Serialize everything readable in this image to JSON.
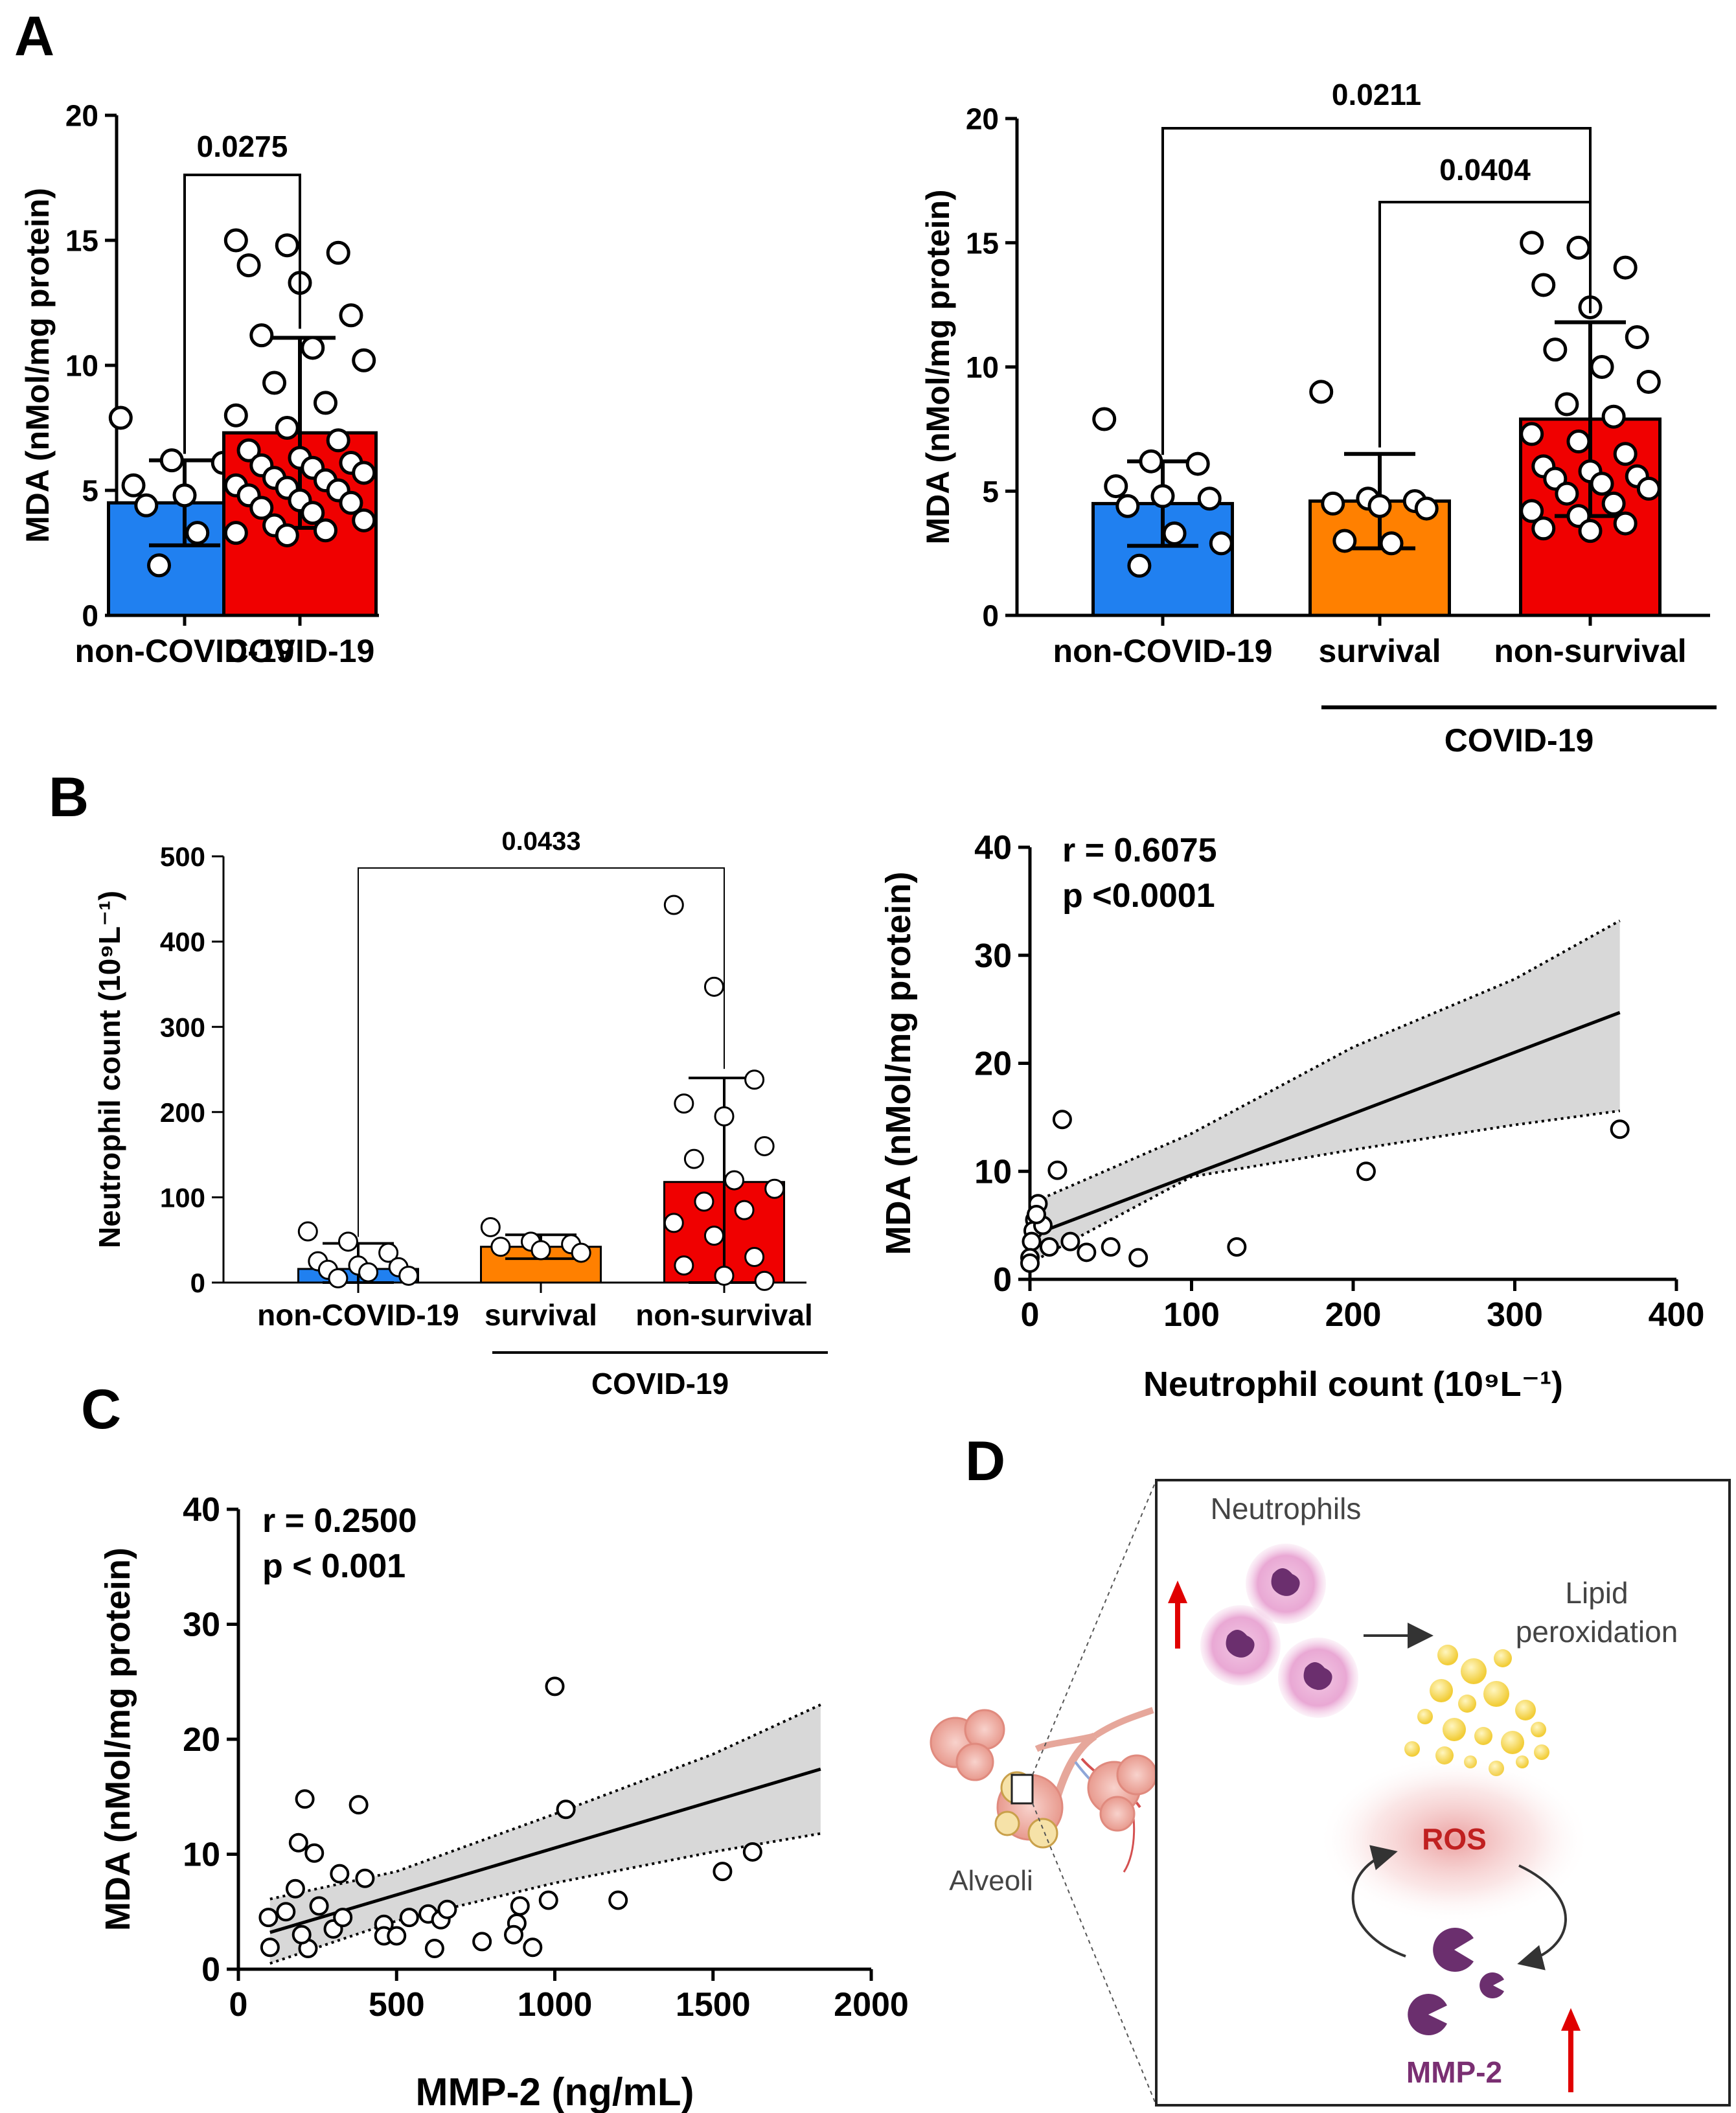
{
  "panel_labels": {
    "A": "A",
    "B": "B",
    "C": "C",
    "D": "D"
  },
  "chart_data": [
    {
      "id": "A1",
      "type": "bar",
      "ylabel": "MDA (nMol/mg protein)",
      "ylim": [
        0,
        20
      ],
      "yticks": [
        "0",
        "5",
        "10",
        "15",
        "20"
      ],
      "categories": [
        "non-COVID-19",
        "COVID-19"
      ],
      "colors": [
        "#2080f0",
        "#f00000"
      ],
      "values": [
        4.5,
        7.3
      ],
      "sd": [
        1.7,
        3.8
      ],
      "points": [
        [
          7.9,
          6.2,
          6.1,
          5.2,
          4.8,
          4.7,
          4.4,
          3.3,
          2.9,
          2.0
        ],
        [
          15.0,
          14.8,
          14.5,
          14.0,
          13.3,
          12.0,
          11.2,
          10.7,
          10.2,
          9.3,
          8.5,
          8.0,
          7.5,
          7.0,
          6.6,
          6.3,
          6.1,
          6.0,
          5.9,
          5.7,
          5.5,
          5.4,
          5.2,
          5.1,
          5.0,
          4.8,
          4.6,
          4.5,
          4.3,
          4.1,
          3.8,
          3.6,
          3.4,
          3.3,
          3.2
        ]
      ],
      "comparisons": [
        {
          "from": 0,
          "to": 1,
          "label": "0.0275"
        }
      ]
    },
    {
      "id": "A2",
      "type": "bar",
      "ylabel": "MDA (nMol/mg protein)",
      "ylim": [
        0,
        20
      ],
      "yticks": [
        "0",
        "5",
        "10",
        "15",
        "20"
      ],
      "categories": [
        "non-COVID-19",
        "survival",
        "non-survival"
      ],
      "colors": [
        "#2080f0",
        "#ff8000",
        "#f00000"
      ],
      "values": [
        4.5,
        4.6,
        7.9
      ],
      "sd": [
        1.7,
        1.9,
        3.9
      ],
      "points": [
        [
          7.9,
          6.2,
          6.1,
          5.2,
          4.8,
          4.7,
          4.4,
          3.3,
          2.9,
          2.0
        ],
        [
          9.0,
          4.7,
          4.6,
          4.5,
          4.4,
          4.3,
          3.0,
          2.9
        ],
        [
          15.0,
          14.8,
          14.0,
          13.3,
          12.4,
          11.2,
          10.7,
          10.0,
          9.4,
          8.5,
          8.0,
          7.3,
          7.0,
          6.5,
          6.0,
          5.8,
          5.6,
          5.5,
          5.3,
          5.1,
          4.9,
          4.5,
          4.2,
          4.0,
          3.7,
          3.5,
          3.4
        ]
      ],
      "comparisons": [
        {
          "from": 0,
          "to": 2,
          "label": "0.0211"
        },
        {
          "from": 1,
          "to": 2,
          "label": "0.0404"
        }
      ],
      "group_label": "COVID-19"
    },
    {
      "id": "B1",
      "type": "bar",
      "ylabel": "Neutrophil count (10⁹L⁻¹)",
      "ylim": [
        0,
        500
      ],
      "yticks": [
        "0",
        "100",
        "200",
        "300",
        "400",
        "500"
      ],
      "categories": [
        "non-COVID-19",
        "survival",
        "non-survival"
      ],
      "colors": [
        "#2080f0",
        "#ff8000",
        "#f00000"
      ],
      "values": [
        16,
        42,
        118
      ],
      "sd": [
        30,
        14,
        122
      ],
      "points": [
        [
          60,
          48,
          35,
          25,
          20,
          18,
          15,
          12,
          8,
          5
        ],
        [
          65,
          48,
          45,
          42,
          38,
          35
        ],
        [
          443,
          347,
          238,
          210,
          195,
          160,
          145,
          120,
          110,
          95,
          85,
          70,
          55,
          30,
          20,
          8,
          2
        ]
      ],
      "comparisons": [
        {
          "from": 0,
          "to": 2,
          "label": "0.0433"
        }
      ],
      "group_label": "COVID-19"
    },
    {
      "id": "B2",
      "type": "scatter",
      "xlabel": "Neutrophil count (10⁹L⁻¹)",
      "ylabel": "MDA (nMol/mg protein)",
      "xlim": [
        0,
        400
      ],
      "ylim": [
        0,
        40
      ],
      "xticks": [
        "0",
        "100",
        "200",
        "300",
        "400"
      ],
      "yticks": [
        "0",
        "10",
        "20",
        "30",
        "40"
      ],
      "stats": [
        "r = 0.6075",
        "p <0.0001"
      ],
      "points": [
        [
          20,
          14.8
        ],
        [
          17,
          10.1
        ],
        [
          208,
          10.0
        ],
        [
          365,
          13.9
        ],
        [
          128,
          3.0
        ],
        [
          50,
          3.0
        ],
        [
          67,
          2.0
        ],
        [
          35,
          2.5
        ],
        [
          5,
          7.0
        ],
        [
          3,
          5.5
        ],
        [
          2,
          4.5
        ],
        [
          1,
          3.5
        ],
        [
          0,
          2.0
        ],
        [
          0,
          1.5
        ],
        [
          8,
          5.0
        ],
        [
          12,
          3.0
        ],
        [
          25,
          3.5
        ],
        [
          4,
          6.0
        ]
      ],
      "fit": {
        "x": [
          0,
          365
        ],
        "y": [
          4.0,
          24.7
        ]
      },
      "ci_upper": [
        [
          0,
          7.0
        ],
        [
          100,
          13.5
        ],
        [
          200,
          21.5
        ],
        [
          300,
          27.8
        ],
        [
          365,
          33.2
        ]
      ],
      "ci_lower": [
        [
          0,
          1.5
        ],
        [
          100,
          9.5
        ],
        [
          200,
          12.0
        ],
        [
          300,
          14.3
        ],
        [
          365,
          15.6
        ]
      ]
    },
    {
      "id": "C",
      "type": "scatter",
      "xlabel": "MMP-2 (ng/mL)",
      "ylabel": "MDA (nMol/mg protein)",
      "xlim": [
        0,
        2000
      ],
      "ylim": [
        0,
        40
      ],
      "xticks": [
        "0",
        "500",
        "1000",
        "1500",
        "2000"
      ],
      "yticks": [
        "0",
        "10",
        "20",
        "30",
        "40"
      ],
      "stats": [
        "r = 0.2500",
        "p < 0.001"
      ],
      "points": [
        [
          1000,
          24.6
        ],
        [
          210,
          14.8
        ],
        [
          380,
          14.3
        ],
        [
          1035,
          13.9
        ],
        [
          190,
          11.0
        ],
        [
          240,
          10.1
        ],
        [
          1625,
          10.2
        ],
        [
          1530,
          8.5
        ],
        [
          320,
          8.3
        ],
        [
          400,
          7.9
        ],
        [
          180,
          7.0
        ],
        [
          255,
          5.5
        ],
        [
          890,
          5.5
        ],
        [
          980,
          6.0
        ],
        [
          1200,
          6.0
        ],
        [
          95,
          4.5
        ],
        [
          300,
          3.5
        ],
        [
          330,
          4.5
        ],
        [
          460,
          3.9
        ],
        [
          540,
          4.5
        ],
        [
          600,
          4.8
        ],
        [
          640,
          4.3
        ],
        [
          660,
          5.2
        ],
        [
          880,
          4.0
        ],
        [
          870,
          3.0
        ],
        [
          460,
          2.9
        ],
        [
          500,
          2.9
        ],
        [
          770,
          2.4
        ],
        [
          100,
          1.9
        ],
        [
          220,
          1.8
        ],
        [
          620,
          1.8
        ],
        [
          930,
          1.9
        ],
        [
          150,
          5.0
        ],
        [
          200,
          3.0
        ]
      ],
      "fit": {
        "x": [
          100,
          1840
        ],
        "y": [
          3.2,
          17.4
        ]
      },
      "ci_upper": [
        [
          100,
          6.1
        ],
        [
          500,
          8.5
        ],
        [
          1000,
          13.5
        ],
        [
          1500,
          18.7
        ],
        [
          1840,
          23.0
        ]
      ],
      "ci_lower": [
        [
          100,
          0.5
        ],
        [
          500,
          4.2
        ],
        [
          1000,
          7.5
        ],
        [
          1500,
          10.2
        ],
        [
          1840,
          11.8
        ]
      ]
    }
  ],
  "illustration": {
    "neutrophils_label": "Neutrophils",
    "lipid_label_line1": "Lipid",
    "lipid_label_line2": "peroxidation",
    "ros_label": "ROS",
    "mmp2_label": "MMP-2",
    "alveoli_label": "Alveoli"
  }
}
